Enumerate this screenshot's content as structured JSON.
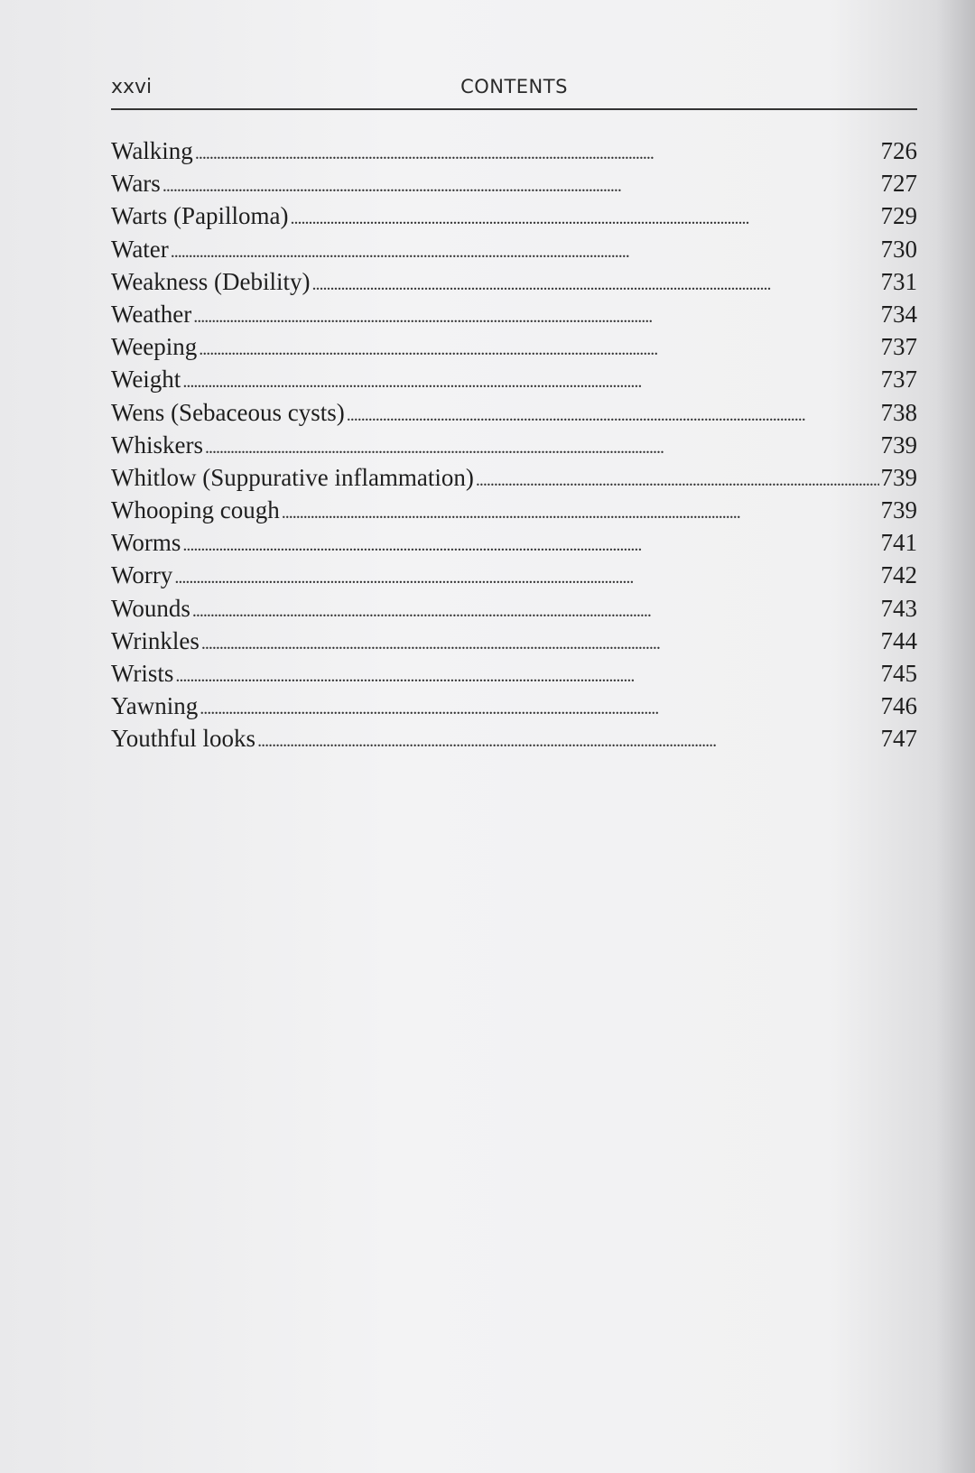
{
  "header": {
    "page_number": "xxvi",
    "title": "CONTENTS"
  },
  "entries": [
    {
      "title": "Walking",
      "page": "726"
    },
    {
      "title": "Wars",
      "page": "727"
    },
    {
      "title": "Warts (Papilloma)",
      "page": "729"
    },
    {
      "title": "Water",
      "page": "730"
    },
    {
      "title": "Weakness (Debility)",
      "page": "731"
    },
    {
      "title": "Weather",
      "page": "734"
    },
    {
      "title": "Weeping",
      "page": "737"
    },
    {
      "title": "Weight",
      "page": "737"
    },
    {
      "title": "Wens (Sebaceous cysts)",
      "page": "738"
    },
    {
      "title": "Whiskers",
      "page": "739"
    },
    {
      "title": "Whitlow (Suppurative inflammation)",
      "page": "739"
    },
    {
      "title": "Whooping cough",
      "page": "739"
    },
    {
      "title": "Worms",
      "page": "741"
    },
    {
      "title": "Worry",
      "page": "742"
    },
    {
      "title": "Wounds",
      "page": "743"
    },
    {
      "title": "Wrinkles",
      "page": "744"
    },
    {
      "title": "Wrists",
      "page": "745"
    },
    {
      "title": "Yawning",
      "page": "746"
    },
    {
      "title": "Youthful looks",
      "page": "747"
    }
  ]
}
